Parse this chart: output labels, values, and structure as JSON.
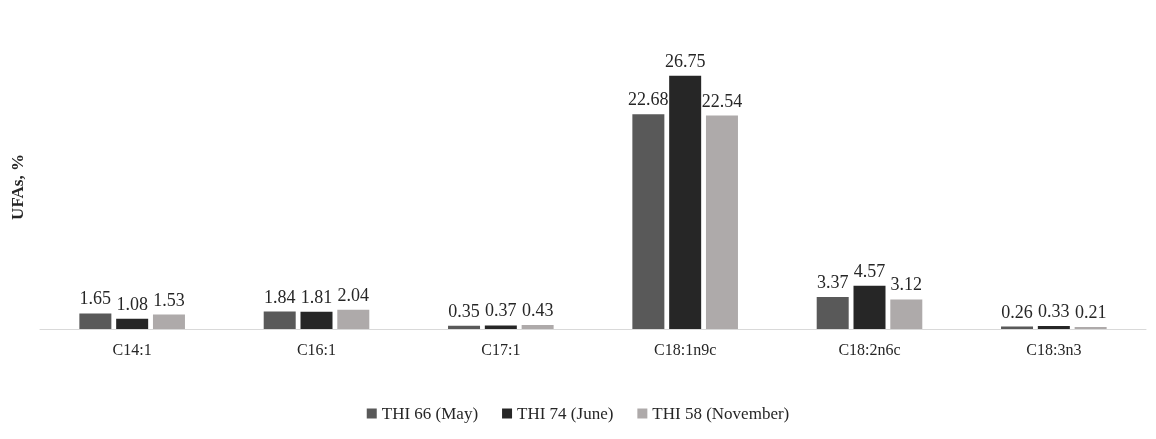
{
  "chart_data": {
    "type": "bar",
    "ylabel": "UFAs, %",
    "categories": [
      "C14:1",
      "C16:1",
      "C17:1",
      "C18:1n9c",
      "C18:2n6c",
      "C18:3n3"
    ],
    "series": [
      {
        "name": "THI 66 (May)",
        "color": "#595959",
        "values": [
          1.65,
          1.84,
          0.35,
          22.68,
          3.37,
          0.26
        ]
      },
      {
        "name": "THI 74 (June)",
        "color": "#262626",
        "values": [
          1.08,
          1.81,
          0.37,
          26.75,
          4.57,
          0.33
        ]
      },
      {
        "name": "THI 58 (November)",
        "color": "#aeaaaa",
        "values": [
          1.53,
          2.04,
          0.43,
          22.54,
          3.12,
          0.21
        ]
      }
    ],
    "data_labels": true,
    "legend": "bottom",
    "grid": false
  }
}
